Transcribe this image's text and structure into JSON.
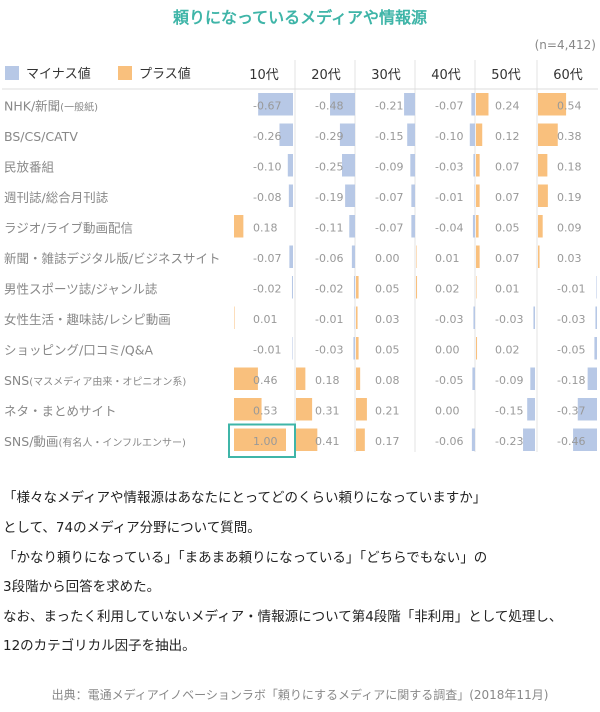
{
  "title": "頼りになっているメディアや情報源",
  "sample": "(n=4,412)",
  "legend": [
    {
      "label": "マイナス値",
      "color": "#b7c8e6"
    },
    {
      "label": "プラス値",
      "color": "#f9c07d"
    }
  ],
  "chart_data": {
    "type": "heatmap",
    "title": "頼りになっているメディアや情報源",
    "columns": [
      "10代",
      "20代",
      "30代",
      "40代",
      "50代",
      "60代"
    ],
    "rows": [
      {
        "label": "NHK/新聞",
        "sub": "(一般紙)",
        "values": [
          "-0.67",
          "-0.48",
          "-0.21",
          "-0.07",
          "0.24",
          "0.54"
        ]
      },
      {
        "label": "BS/CS/CATV",
        "sub": "",
        "values": [
          "-0.26",
          "-0.29",
          "-0.15",
          "-0.10",
          "0.12",
          "0.38"
        ]
      },
      {
        "label": "民放番組",
        "sub": "",
        "values": [
          "-0.10",
          "-0.25",
          "-0.09",
          "-0.03",
          "0.07",
          "0.18"
        ]
      },
      {
        "label": "週刊誌/総合月刊誌",
        "sub": "",
        "values": [
          "-0.08",
          "-0.19",
          "-0.07",
          "-0.01",
          "0.07",
          "0.19"
        ]
      },
      {
        "label": "ラジオ/ライブ動画配信",
        "sub": "",
        "values": [
          "0.18",
          "-0.11",
          "-0.07",
          "-0.04",
          "0.05",
          "0.09"
        ]
      },
      {
        "label": "新聞・雑誌デジタル版/ビジネスサイト",
        "sub": "",
        "values": [
          "-0.07",
          "-0.06",
          "0.00",
          "0.01",
          "0.07",
          "0.03"
        ]
      },
      {
        "label": "男性スポーツ誌/ジャンル誌",
        "sub": "",
        "values": [
          "-0.02",
          "-0.02",
          "0.05",
          "0.02",
          "0.01",
          "-0.01"
        ]
      },
      {
        "label": "女性生活・趣味誌/レシピ動画",
        "sub": "",
        "values": [
          "0.01",
          "-0.01",
          "0.03",
          "-0.03",
          "-0.03",
          "-0.03"
        ]
      },
      {
        "label": "ショッピング/口コミ/Q&A",
        "sub": "",
        "values": [
          "-0.01",
          "-0.03",
          "0.05",
          "0.00",
          "0.02",
          "-0.05"
        ]
      },
      {
        "label": "SNS",
        "sub": "(マスメディア由来・オピニオン系)",
        "values": [
          "0.46",
          "0.18",
          "0.08",
          "-0.05",
          "-0.09",
          "-0.18"
        ]
      },
      {
        "label": "ネタ・まとめサイト",
        "sub": "",
        "values": [
          "0.53",
          "0.31",
          "0.21",
          "0.00",
          "-0.15",
          "-0.37"
        ]
      },
      {
        "label": "SNS/動画",
        "sub": "(有名人・インフルエンサー)",
        "values": [
          "1.00",
          "0.41",
          "0.17",
          "-0.06",
          "-0.23",
          "-0.46"
        ]
      }
    ],
    "highlight": {
      "row": 11,
      "col": 0
    },
    "value_range": [
      -1,
      1
    ]
  },
  "notes": [
    "「様々なメディアや情報源はあなたにとってどのくらい頼りになっていますか」",
    "として、74のメディア分野について質問。",
    "「かなり頼りになっている」「まあまあ頼りになっている」「どちらでもない」の",
    "3段階から回答を求めた。",
    "なお、まったく利用していないメディア・情報源について第4段階「非利用」として処理し、",
    "12のカテゴリカル因子を抽出。"
  ],
  "source": "出典：電通メディアイノベーションラボ「頼りにするメディアに関する調査」(2018年11月)"
}
